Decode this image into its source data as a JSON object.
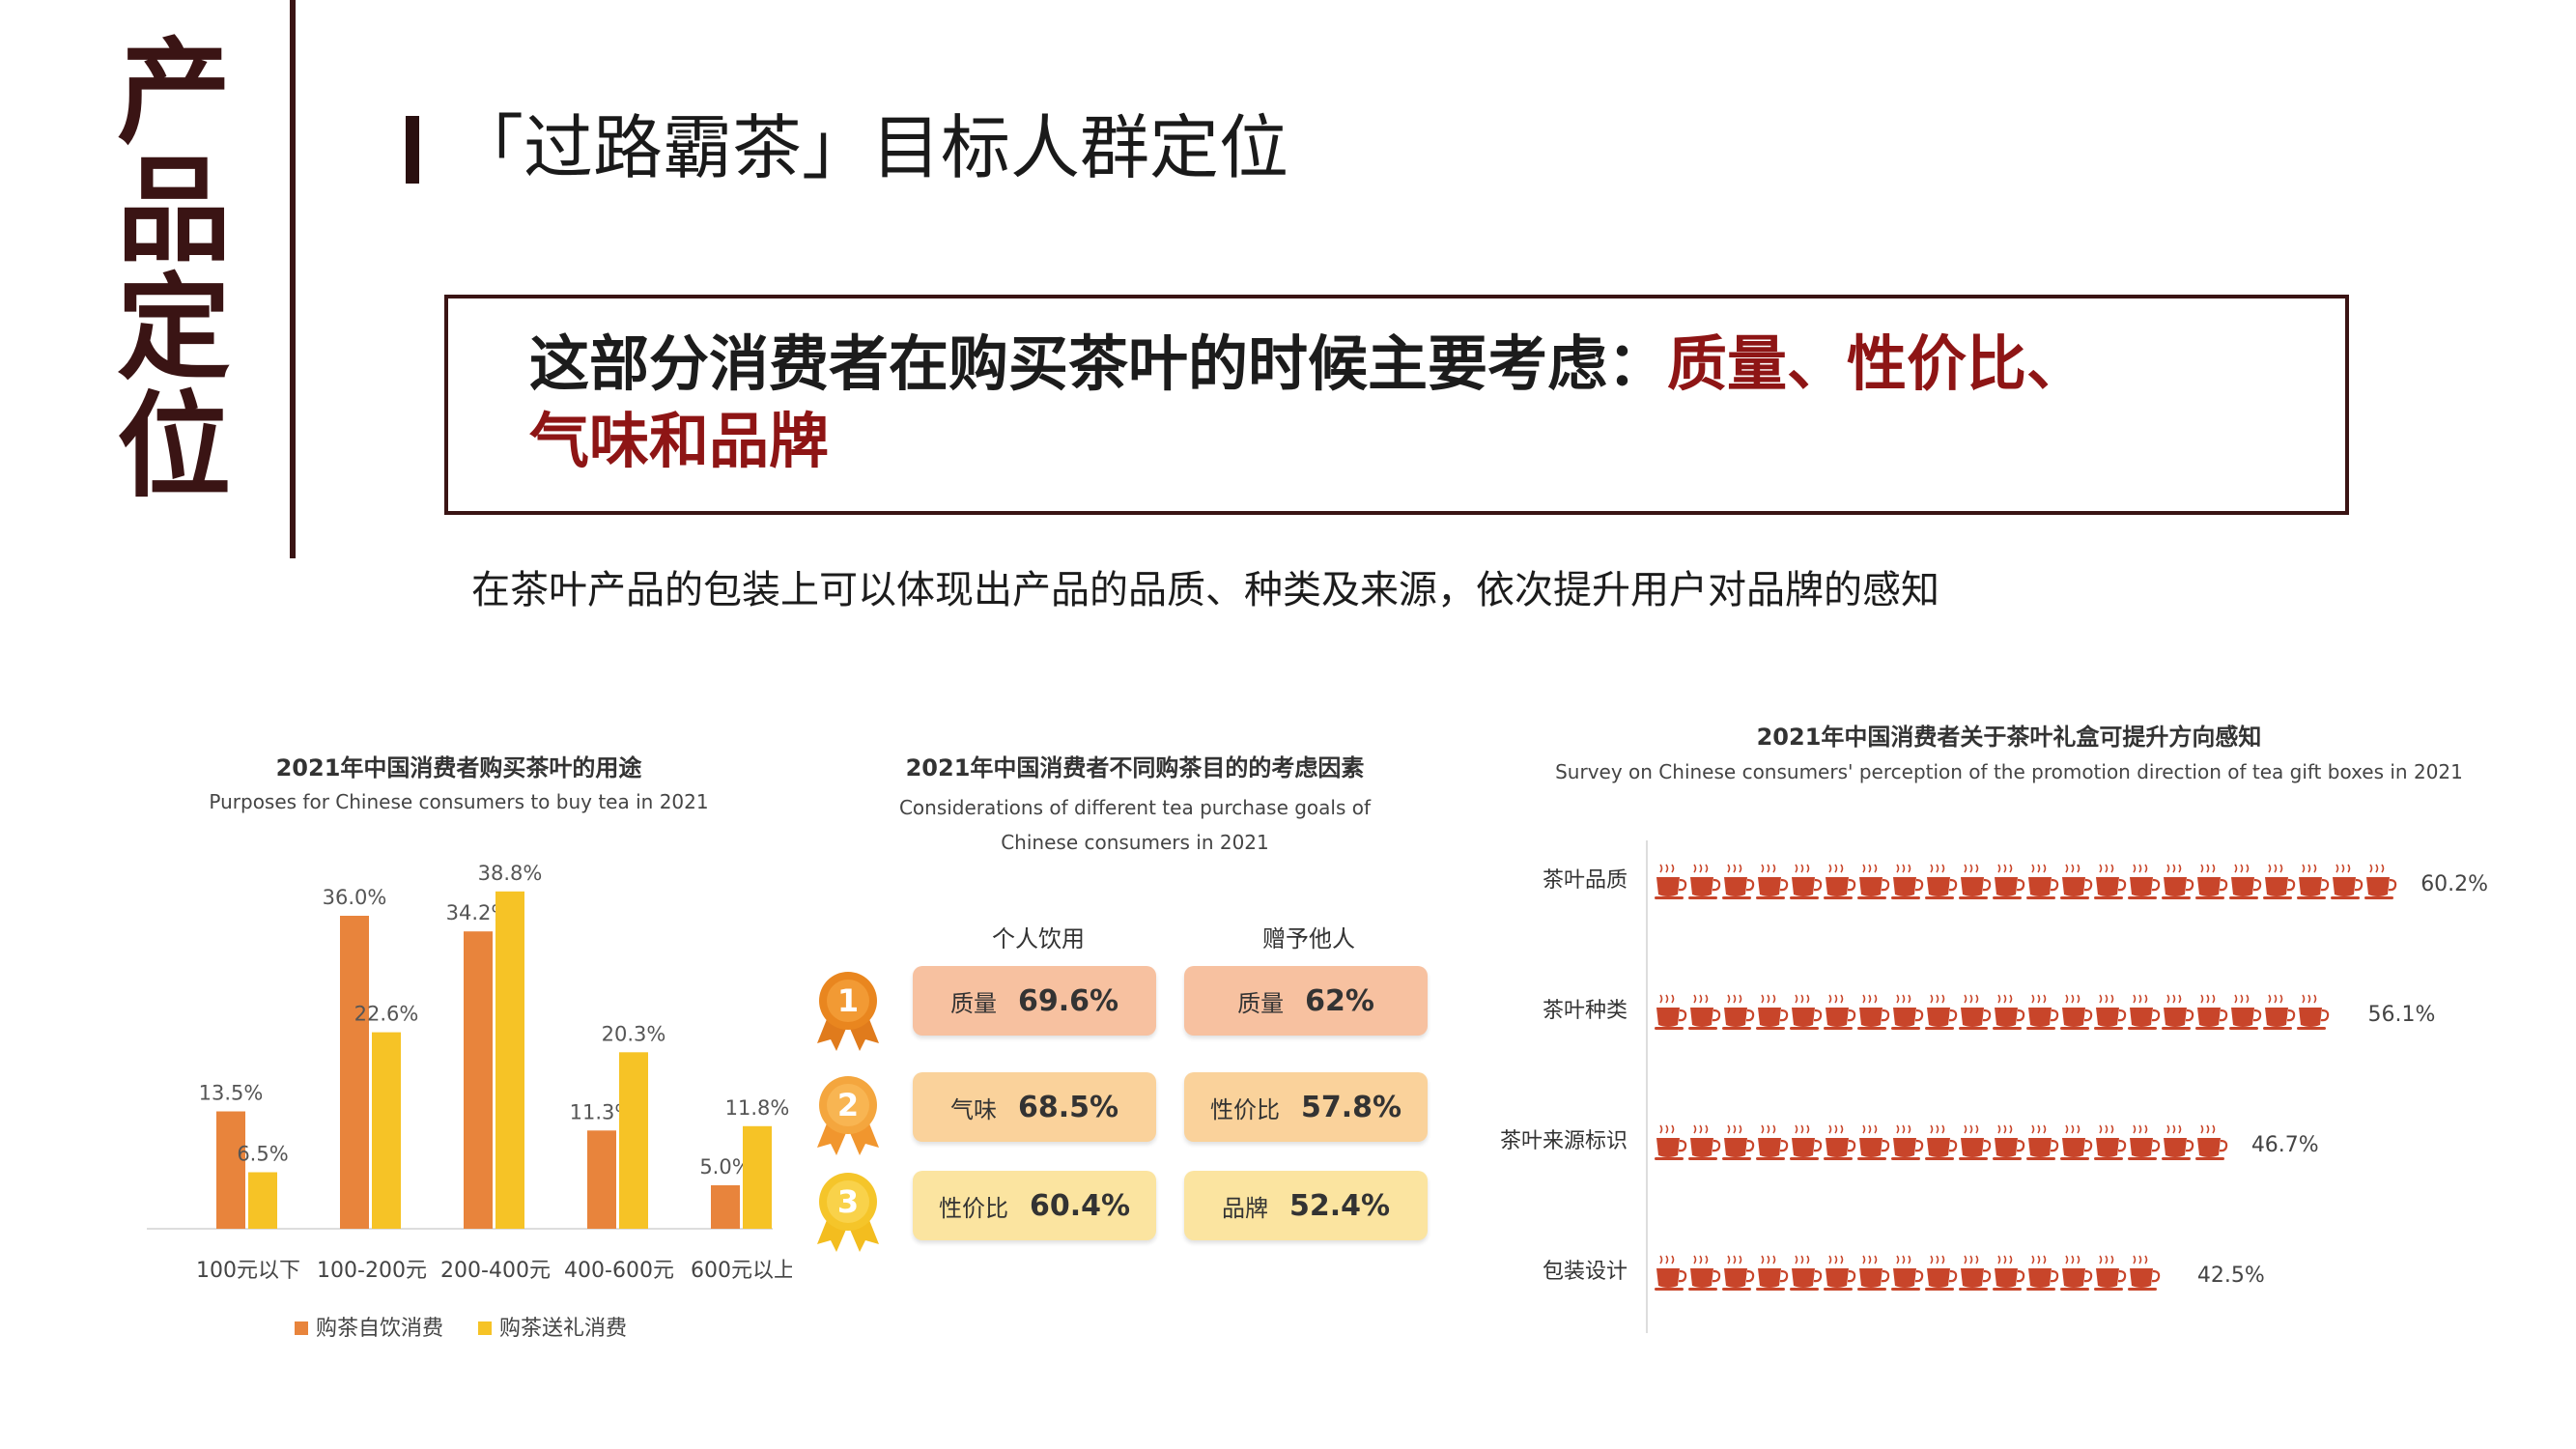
{
  "side_title": [
    "产",
    "品",
    "定",
    "位"
  ],
  "heading": "「过路霸茶」目标人群定位",
  "callout": {
    "text_plain": "这部分消费者在购买茶叶的时候主要考虑：",
    "text_highlight_1": "质量、性价比、",
    "text_highlight_2": "气味和品牌"
  },
  "subline": "在茶叶产品的包装上可以体现出产品的品质、种类及来源，依次提升用户对品牌的感知",
  "colors": {
    "dark_brown": "#3a1414",
    "highlight_red": "#8e1515",
    "orange_series": "#e8843c",
    "yellow_series": "#f6c326",
    "cup_color": "#c8452a",
    "pill_orange": "#f7c1a0",
    "pill_mid": "#fad29b",
    "pill_yellow": "#fbe4a0"
  },
  "chart_data": [
    {
      "type": "bar",
      "title": "2021年中国消费者购买茶叶的用途",
      "subtitle": "Purposes for Chinese consumers to buy tea in 2021",
      "categories": [
        "100元以下",
        "100-200元",
        "200-400元",
        "400-600元",
        "600元以上"
      ],
      "series": [
        {
          "name": "购茶自饮消费",
          "values": [
            13.5,
            36.0,
            34.2,
            11.3,
            5.0
          ],
          "labels": [
            "13.5%",
            "36.0%",
            "34.2%",
            "11.3%",
            "5.0%"
          ]
        },
        {
          "name": "购茶送礼消费",
          "values": [
            6.5,
            22.6,
            38.8,
            20.3,
            11.8
          ],
          "labels": [
            "6.5%",
            "22.6%",
            "38.8%",
            "20.3%",
            "11.8%"
          ]
        }
      ],
      "ylim": [
        0,
        40
      ],
      "grid": false,
      "legend": "bottom"
    },
    {
      "type": "table",
      "title": "2021年中国消费者不同购茶目的的考虑因素",
      "subtitle": "Considerations of different tea purchase goals of Chinese consumers in 2021",
      "columns": [
        "个人饮用",
        "赠予他人"
      ],
      "ranks": [
        "1",
        "2",
        "3"
      ],
      "rows": [
        {
          "rank": "1",
          "personal": {
            "label": "质量",
            "value": "69.6%"
          },
          "gift": {
            "label": "质量",
            "value": "62%"
          }
        },
        {
          "rank": "2",
          "personal": {
            "label": "气味",
            "value": "68.5%"
          },
          "gift": {
            "label": "性价比",
            "value": "57.8%"
          }
        },
        {
          "rank": "3",
          "personal": {
            "label": "性价比",
            "value": "60.4%"
          },
          "gift": {
            "label": "品牌",
            "value": "52.4%"
          }
        }
      ]
    },
    {
      "type": "bar",
      "orientation": "horizontal",
      "title": "2021年中国消费者关于茶叶礼盒可提升方向感知",
      "subtitle": "Survey on Chinese consumers' perception of the promotion direction of tea gift boxes in 2021",
      "categories": [
        "茶叶品质",
        "茶叶种类",
        "茶叶来源标识",
        "包装设计"
      ],
      "values": [
        60.2,
        56.1,
        46.7,
        42.5
      ],
      "labels": [
        "60.2%",
        "56.1%",
        "46.7%",
        "42.5%"
      ],
      "xlim": [
        0,
        70
      ],
      "mark": "teacup-icon"
    }
  ]
}
